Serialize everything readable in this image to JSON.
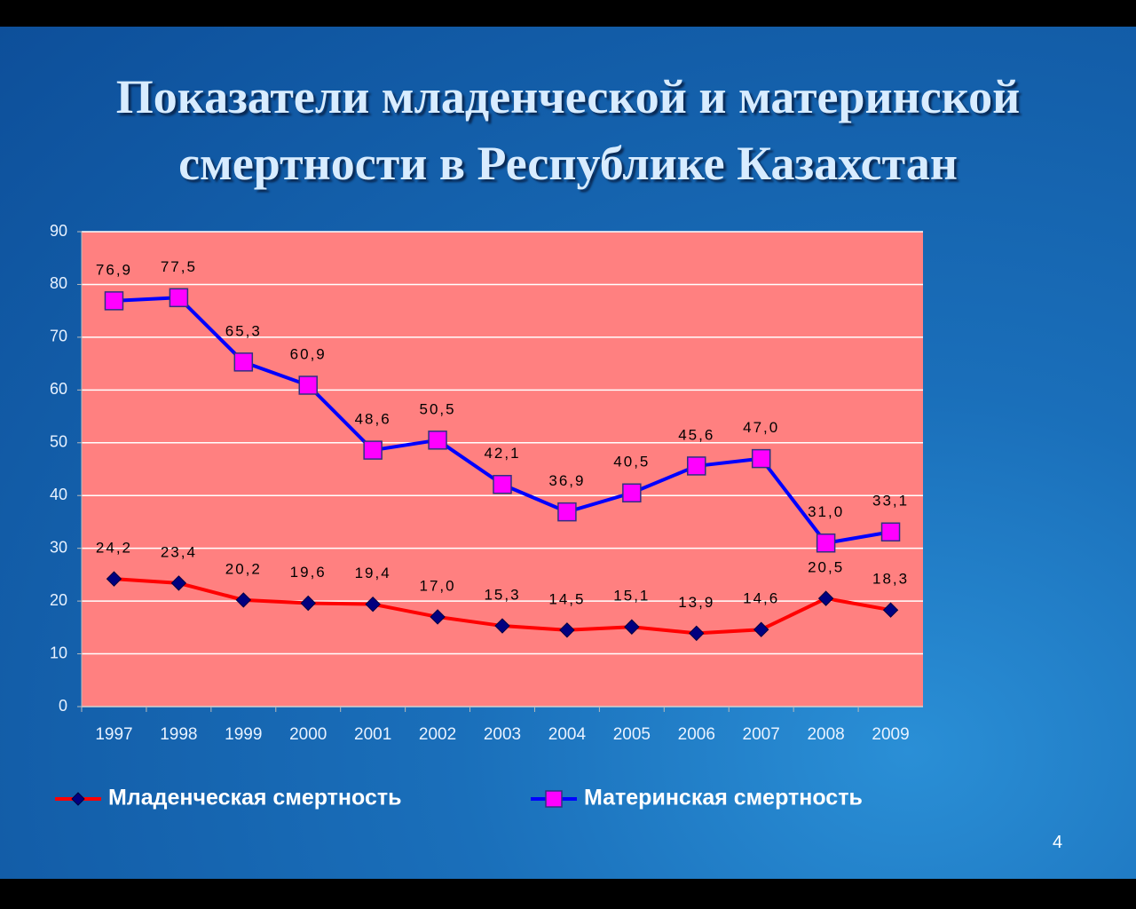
{
  "chart_data": {
    "type": "line",
    "title": "Показатели младенческой и материнской смертности в Республике Казахстан",
    "categories": [
      "1997",
      "1998",
      "1999",
      "2000",
      "2001",
      "2002",
      "2003",
      "2004",
      "2005",
      "2006",
      "2007",
      "2008",
      "2009"
    ],
    "series": [
      {
        "name": "Младенческая смертность",
        "color": "#ff0000",
        "marker": "diamond",
        "marker_color": "#000080",
        "values": [
          24.2,
          23.4,
          20.2,
          19.6,
          19.4,
          17.0,
          15.3,
          14.5,
          15.1,
          13.9,
          14.6,
          20.5,
          18.3
        ],
        "value_labels": [
          "24,2",
          "23,4",
          "20,2",
          "19,6",
          "19,4",
          "17,0",
          "15,3",
          "14,5",
          "15,1",
          "13,9",
          "14,6",
          "20,5",
          "18,3"
        ]
      },
      {
        "name": "Материнская смертность",
        "color": "#0000ff",
        "marker": "square",
        "marker_color": "#ff00ff",
        "values": [
          76.9,
          77.5,
          65.3,
          60.9,
          48.6,
          50.5,
          42.1,
          36.9,
          40.5,
          45.6,
          47.0,
          31.0,
          33.1
        ],
        "value_labels": [
          "76,9",
          "77,5",
          "65,3",
          "60,9",
          "48,6",
          "50,5",
          "42,1",
          "36,9",
          "40,5",
          "45,6",
          "47,0",
          "31,0",
          "33,1"
        ]
      }
    ],
    "ylim": [
      0,
      90
    ],
    "yticks": [
      0,
      10,
      20,
      30,
      40,
      50,
      60,
      70,
      80,
      90
    ],
    "grid": true,
    "plot_background": "#ff8080",
    "legend": "bottom"
  },
  "page_number": "4"
}
